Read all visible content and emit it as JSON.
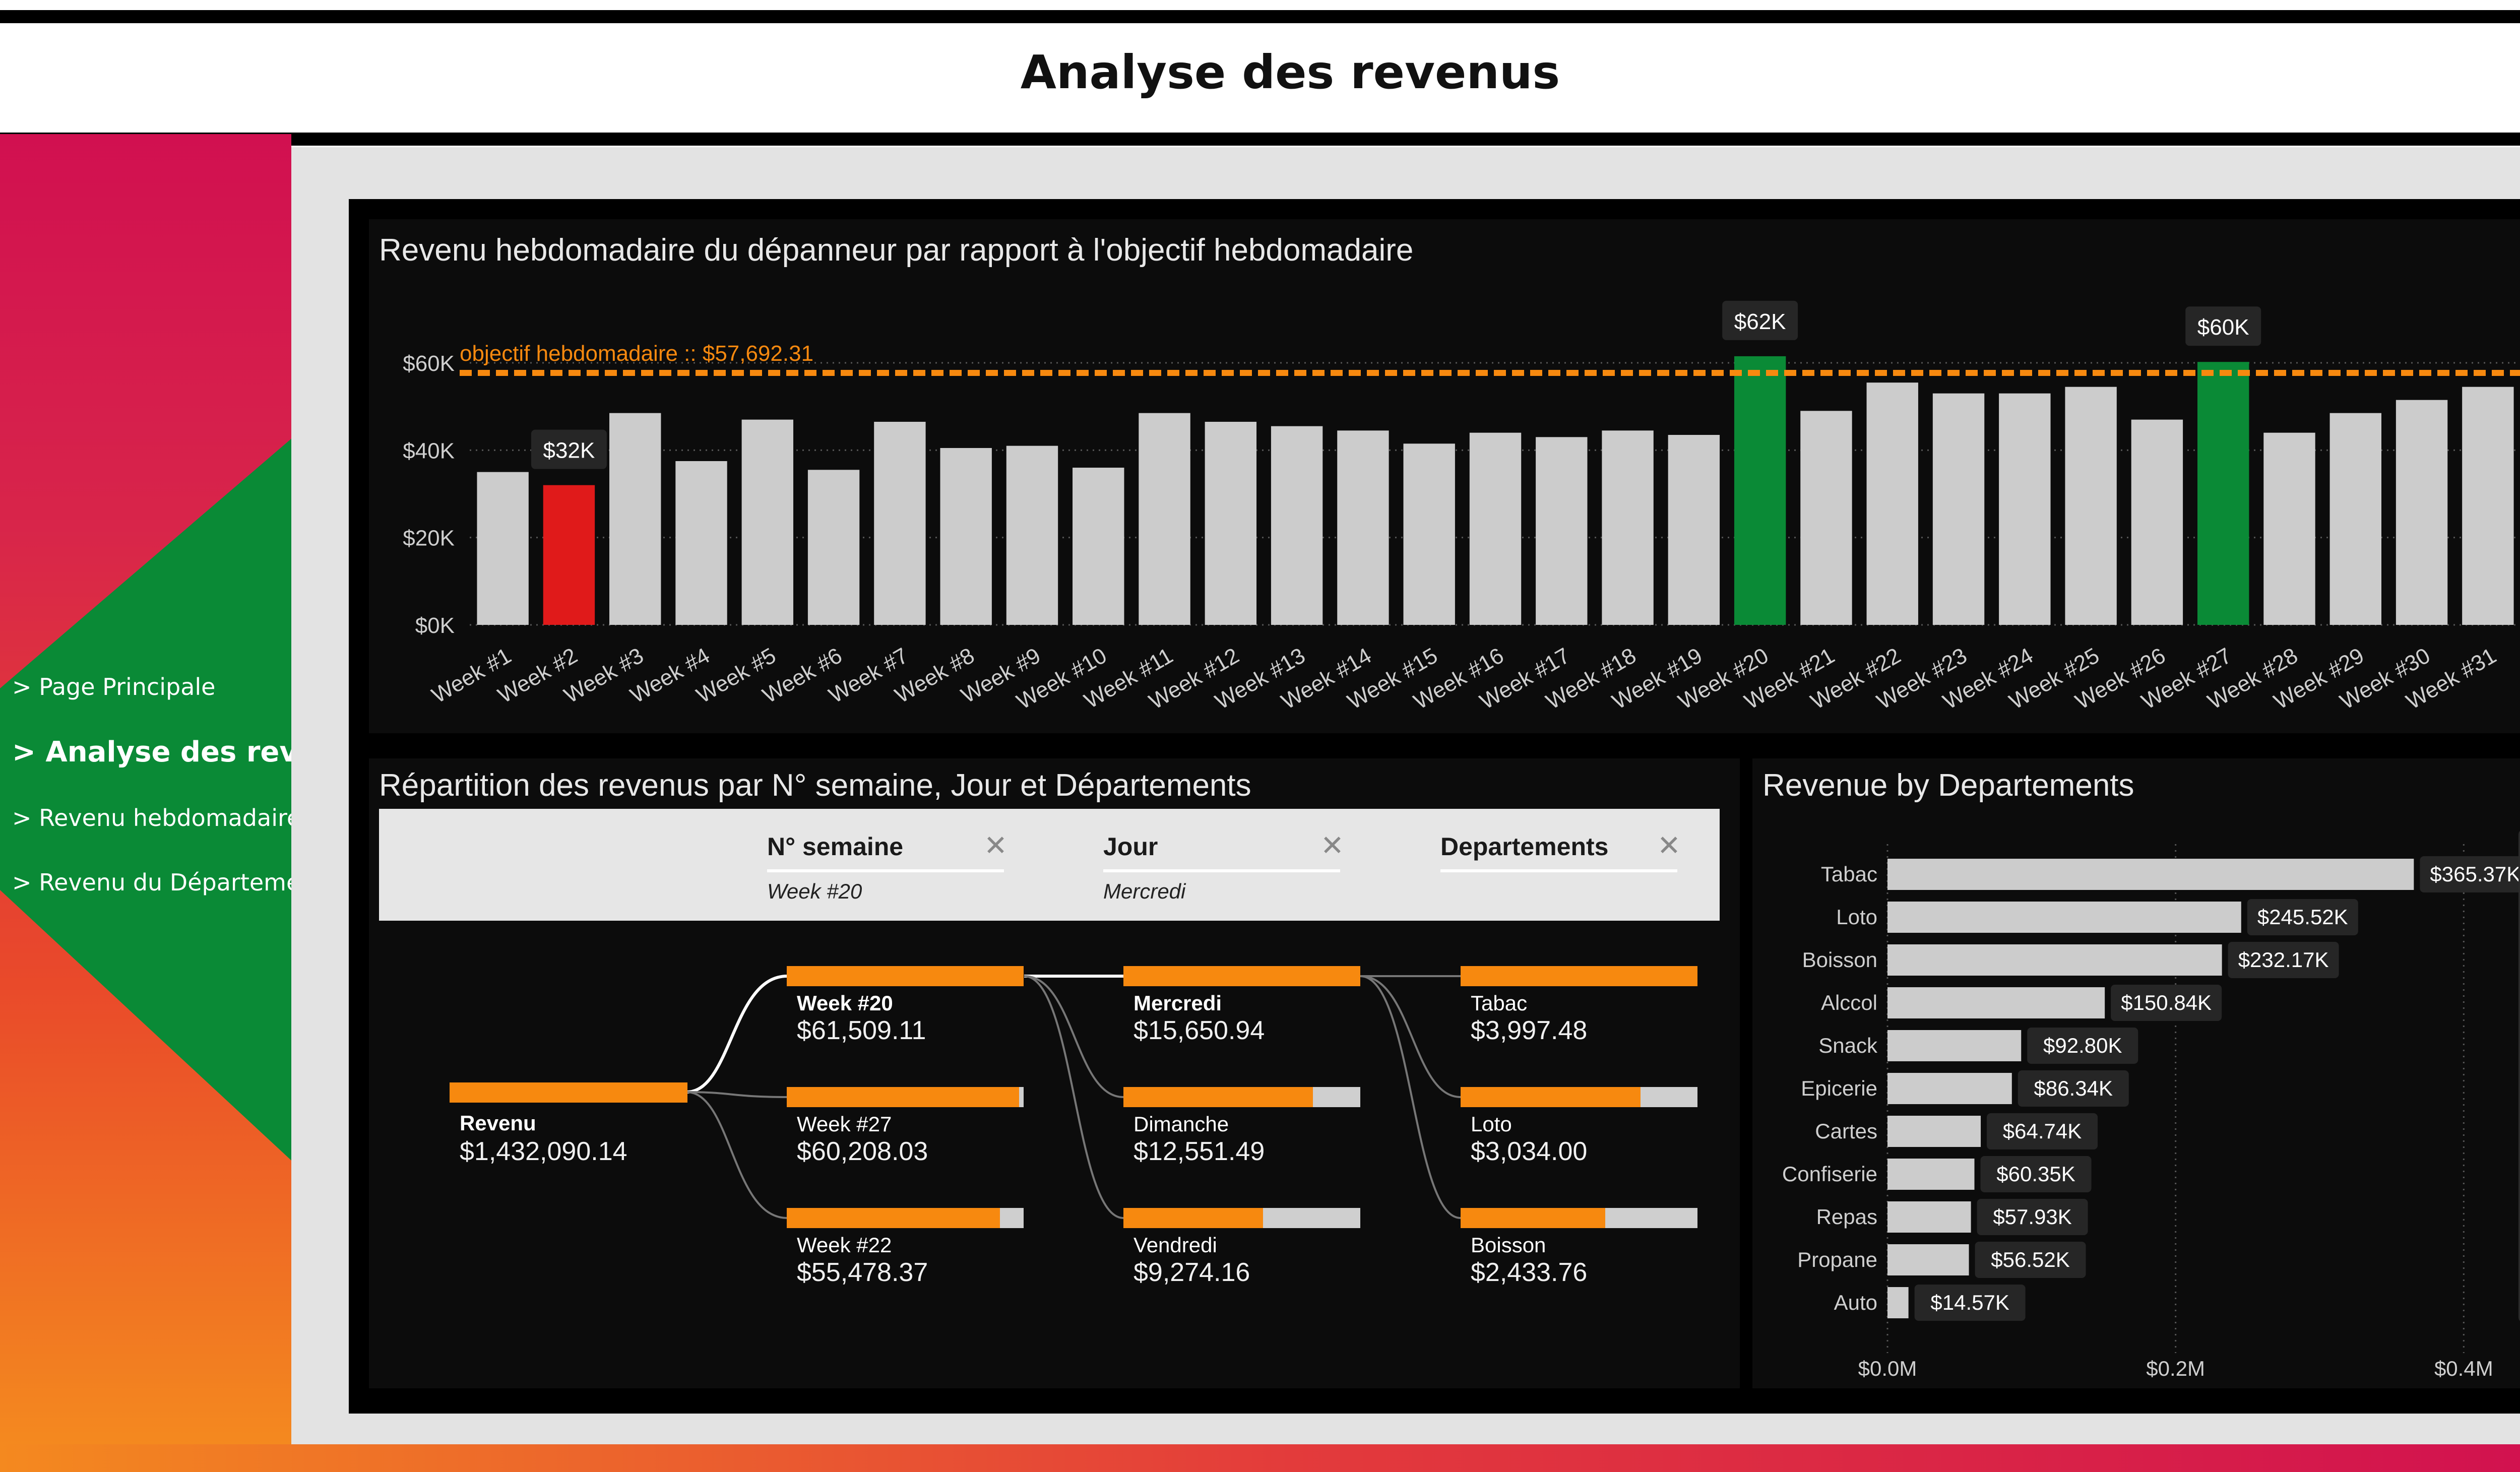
{
  "page": {
    "title": "Analyse des revenus"
  },
  "nav": [
    {
      "label": "> Page Principale",
      "active": false
    },
    {
      "label": "> Analyse des revenus",
      "active": true
    },
    {
      "label": "> Revenu hebdomadaire",
      "active": false
    },
    {
      "label": "> Revenu du Département",
      "active": false
    }
  ],
  "colors": {
    "bar_default": "#cccccc",
    "bar_min": "#e01a1a",
    "bar_above_target": "#0a8a36",
    "target_line": "#f7890f",
    "decomp_fill": "#f7890f",
    "sidebar_green": "#0a8a36"
  },
  "weekly_chart": {
    "title": "Revenu hebdomadaire du dépanneur par rapport à l'objectif hebdomadaire",
    "target_label": "objectif hebdomadaire :: $57,692.31",
    "target_value": 57692.31,
    "y_ticks": [
      "$0K",
      "$20K",
      "$40K",
      "$60K"
    ],
    "callouts": {
      "week_2": "$32K",
      "week_20": "$62K",
      "week_27": "$60K"
    }
  },
  "chart_data": [
    {
      "type": "bar",
      "title": "Revenu hebdomadaire du dépanneur par rapport à l'objectif hebdomadaire",
      "categories": [
        "Week #1",
        "Week #2",
        "Week #3",
        "Week #4",
        "Week #5",
        "Week #6",
        "Week #7",
        "Week #8",
        "Week #9",
        "Week #10",
        "Week #11",
        "Week #12",
        "Week #13",
        "Week #14",
        "Week #15",
        "Week #16",
        "Week #17",
        "Week #18",
        "Week #19",
        "Week #20",
        "Week #21",
        "Week #22",
        "Week #23",
        "Week #24",
        "Week #25",
        "Week #26",
        "Week #27",
        "Week #28",
        "Week #29",
        "Week #30",
        "Week #31"
      ],
      "values": [
        35000,
        32000,
        48500,
        37500,
        47000,
        35500,
        46500,
        40500,
        41000,
        36000,
        48500,
        46500,
        45500,
        44500,
        41500,
        44000,
        43000,
        44500,
        43500,
        61509,
        49000,
        55478,
        53000,
        53000,
        54500,
        47000,
        60208,
        44000,
        48500,
        51500,
        54500
      ],
      "ylim": [
        0,
        60000
      ],
      "y_tick_values": [
        0,
        20000,
        40000,
        60000
      ],
      "target": 57692.31,
      "grid": true,
      "xlabel": "",
      "ylabel": ""
    },
    {
      "type": "bar",
      "orientation": "horizontal",
      "title": "Revenue by Departements",
      "categories": [
        "Tabac",
        "Loto",
        "Boisson",
        "Alccol",
        "Snack",
        "Epicerie",
        "Cartes",
        "Confiserie",
        "Repas",
        "Propane",
        "Auto"
      ],
      "values": [
        365370,
        245520,
        232170,
        150840,
        92800,
        86340,
        64740,
        60350,
        57930,
        56520,
        14570
      ],
      "labels": [
        "$365.37K",
        "$245.52K",
        "$232.17K",
        "$150.84K",
        "$92.80K",
        "$86.34K",
        "$64.74K",
        "$60.35K",
        "$57.93K",
        "$56.52K",
        "$14.57K"
      ],
      "x_ticks": [
        "$0.0M",
        "$0.2M",
        "$0.4M"
      ],
      "x_tick_values": [
        0,
        200000,
        400000
      ],
      "xlim": [
        0,
        480000
      ],
      "grid": true
    }
  ],
  "decomp": {
    "title": "Répartition des revenus par N° semaine, Jour et Départements",
    "filters": [
      {
        "header": "N° semaine",
        "value": "Week #20"
      },
      {
        "header": "Jour",
        "value": "Mercredi"
      },
      {
        "header": "Departements",
        "value": ""
      }
    ],
    "root": {
      "label": "Revenu",
      "value": "$1,432,090.14"
    },
    "level1": [
      {
        "label": "Week #20",
        "value": "$61,509.11",
        "fill": 1.0
      },
      {
        "label": "Week #27",
        "value": "$60,208.03",
        "fill": 0.98
      },
      {
        "label": "Week #22",
        "value": "$55,478.37",
        "fill": 0.9
      }
    ],
    "level2": [
      {
        "label": "Mercredi",
        "value": "$15,650.94",
        "fill": 1.0
      },
      {
        "label": "Dimanche",
        "value": "$12,551.49",
        "fill": 0.8
      },
      {
        "label": "Vendredi",
        "value": "$9,274.16",
        "fill": 0.59
      }
    ],
    "level3": [
      {
        "label": "Tabac",
        "value": "$3,997.48",
        "fill": 1.0
      },
      {
        "label": "Loto",
        "value": "$3,034.00",
        "fill": 0.76
      },
      {
        "label": "Boisson",
        "value": "$2,433.76",
        "fill": 0.61
      }
    ]
  },
  "dept_chart": {
    "title": "Revenue by Departements"
  }
}
